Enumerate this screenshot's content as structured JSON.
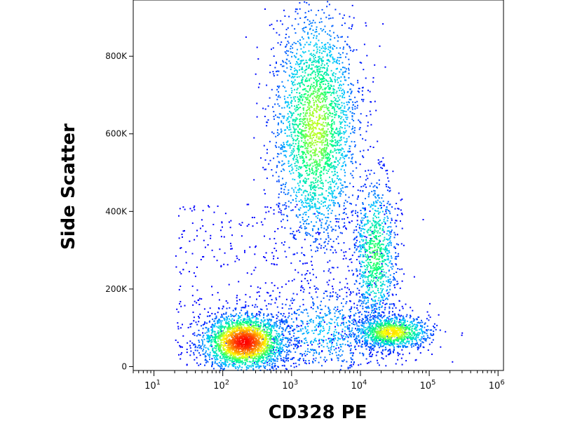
{
  "chart_data": {
    "type": "scatter",
    "subtype": "flow-cytometry density dot plot",
    "xlabel": "CD328 PE",
    "ylabel": "Side Scatter",
    "x_scale": "log",
    "xlim": [
      5,
      1200000
    ],
    "ylim": [
      -10000,
      945000
    ],
    "x_ticks": [
      {
        "base": "10",
        "exp": "1",
        "value": 10
      },
      {
        "base": "10",
        "exp": "2",
        "value": 100
      },
      {
        "base": "10",
        "exp": "3",
        "value": 1000
      },
      {
        "base": "10",
        "exp": "4",
        "value": 10000
      },
      {
        "base": "10",
        "exp": "5",
        "value": 100000
      },
      {
        "base": "10",
        "exp": "6",
        "value": 1000000
      }
    ],
    "y_ticks": [
      {
        "label": "0",
        "value": 0
      },
      {
        "label": "200K",
        "value": 200000
      },
      {
        "label": "400K",
        "value": 400000
      },
      {
        "label": "600K",
        "value": 600000
      },
      {
        "label": "800K",
        "value": 800000
      }
    ],
    "populations": [
      {
        "x_center": 200,
        "y_center": 65000,
        "relative_density": 1.0,
        "count": 2400
      },
      {
        "x_center": 2200,
        "y_center": 620000,
        "relative_density": 0.55,
        "count": 2600
      },
      {
        "x_center": 16000,
        "y_center": 290000,
        "relative_density": 0.45,
        "count": 900
      },
      {
        "x_center": 28000,
        "y_center": 90000,
        "relative_density": 0.65,
        "count": 1100
      },
      {
        "x_center": 3000,
        "y_center": 90000,
        "relative_density": 0.2,
        "count": 700
      }
    ],
    "color_scale": [
      "#0000ff",
      "#00c8ff",
      "#00ff80",
      "#ffff00",
      "#ff8000",
      "#ff0000"
    ],
    "grid": false,
    "legend": "none"
  }
}
